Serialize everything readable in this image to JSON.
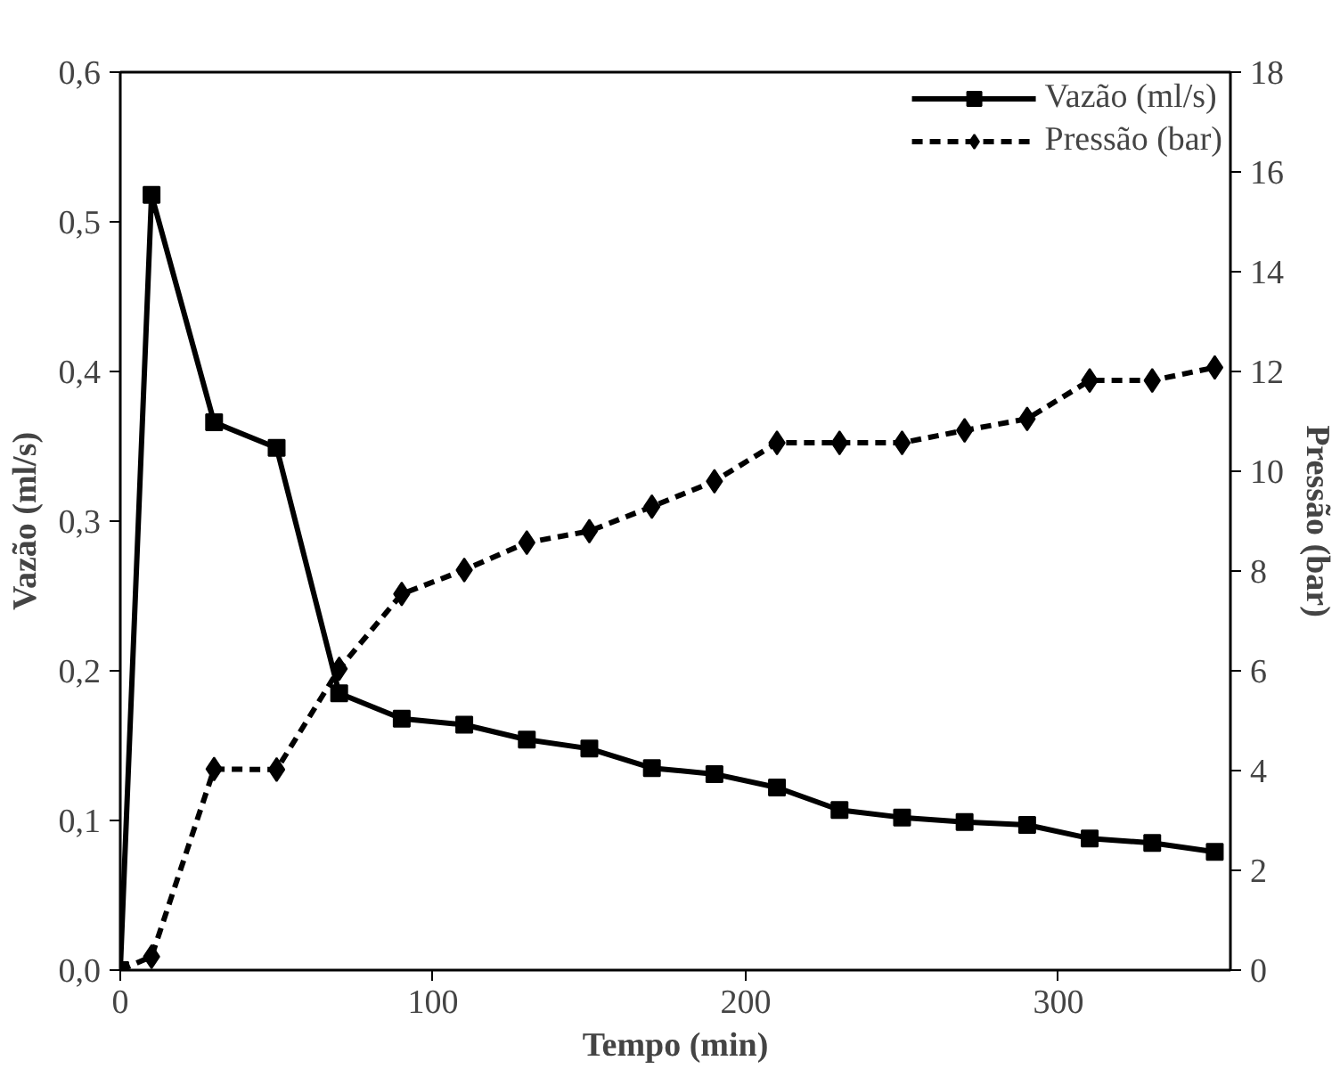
{
  "chart_data": {
    "type": "line",
    "xlabel": "Tempo (min)",
    "ylabel": "Vazão (ml/s)",
    "y2label": "Pressão (bar)",
    "x": [
      0,
      10,
      30,
      50,
      70,
      90,
      110,
      130,
      150,
      170,
      190,
      210,
      230,
      250,
      270,
      290,
      310,
      330,
      350
    ],
    "series": [
      {
        "name": "Vazão (ml/s)",
        "color": "#000000",
        "marker": "square",
        "line_style": "solid",
        "values": [
          0,
          0.518,
          0.366,
          0.349,
          0.185,
          0.168,
          0.164,
          0.154,
          0.148,
          0.135,
          0.131,
          0.122,
          0.107,
          0.102,
          0.099,
          0.097,
          0.088,
          0.085,
          0.079
        ]
      },
      {
        "name": "Pressão (bar)",
        "color": "#000000",
        "marker": "diamond",
        "line_style": "dashed",
        "axis": "y2",
        "values": [
          0,
          0.27,
          4.03,
          4.02,
          6.04,
          7.54,
          8.02,
          8.57,
          8.8,
          9.29,
          9.8,
          10.57,
          10.57,
          10.57,
          10.82,
          11.05,
          11.82,
          11.82,
          12.08
        ]
      }
    ],
    "xlim": [
      0,
      355
    ],
    "xticks": [
      0,
      100,
      200,
      300
    ],
    "ylim": [
      0,
      0.6
    ],
    "yticks": [
      {
        "value": 0,
        "label": "0,0"
      },
      {
        "value": 0.1,
        "label": "0,1"
      },
      {
        "value": 0.2,
        "label": "0,2"
      },
      {
        "value": 0.3,
        "label": "0,3"
      },
      {
        "value": 0.4,
        "label": "0,4"
      },
      {
        "value": 0.5,
        "label": "0,5"
      },
      {
        "value": 0.6,
        "label": "0,6"
      }
    ],
    "y2lim": [
      0,
      18
    ],
    "y2ticks": [
      0,
      2,
      4,
      6,
      8,
      10,
      12,
      14,
      16,
      18
    ],
    "grid": false,
    "legend": "top right"
  }
}
